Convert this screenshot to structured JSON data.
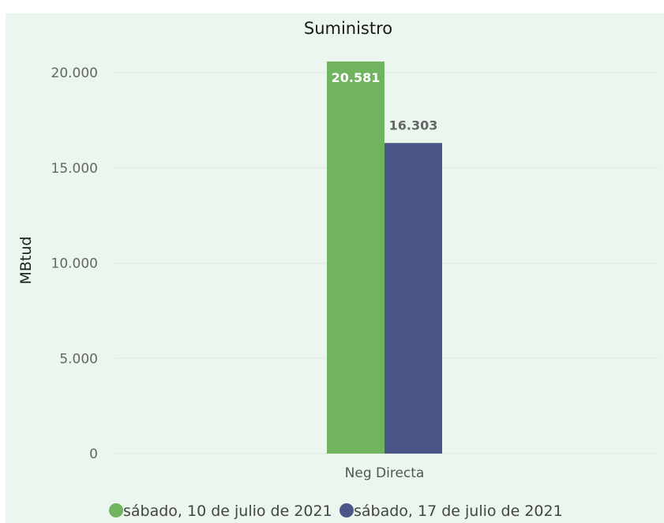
{
  "colors": {
    "background": "#eaf6ee",
    "series1": "#70b45f",
    "series2": "#4a5688",
    "label_inside": "#ffffff",
    "label_outside": "#666666"
  },
  "chart_data": {
    "type": "bar",
    "title": "Suministro",
    "xlabel": "",
    "ylabel": "MBtud",
    "categories": [
      "Neg Directa"
    ],
    "series": [
      {
        "name": "sábado, 10 de julio de 2021",
        "values": [
          20581
        ],
        "labels": [
          "20.581"
        ]
      },
      {
        "name": "sábado, 17 de julio de 2021",
        "values": [
          16303
        ],
        "labels": [
          "16.303"
        ]
      }
    ],
    "ylim": [
      0,
      20581
    ],
    "yticks": [
      0,
      5000,
      10000,
      15000,
      20000
    ],
    "ytick_labels": [
      "0",
      "5.000",
      "10.000",
      "15.000",
      "20.000"
    ],
    "grid": true,
    "legend": "bottom"
  }
}
